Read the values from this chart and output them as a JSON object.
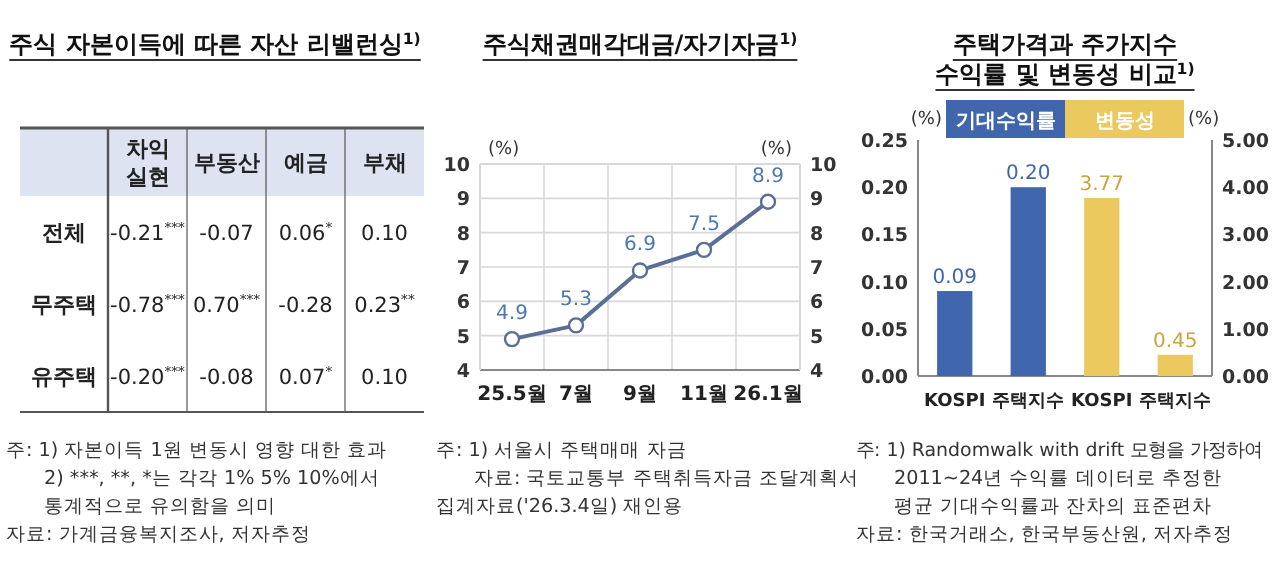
{
  "chart_data": [
    {
      "type": "other",
      "title": "주식 자본이득에 따른 자산 리밸런싱$^{1)}$",
      "categories": [
        "차익 실현",
        "부동산",
        "예금",
        "부채"
      ],
      "y_categories": [
        "전체",
        "무주택",
        "유주택"
      ],
      "cell_labels": [
        [
          "-0.21$^{***}$",
          "-0.07",
          "0.06$^{*}$",
          "0.10"
        ],
        [
          "-0.78$^{***}$",
          "0.70$^{***}$",
          "-0.28",
          "0.23$^{**}$"
        ],
        [
          "-0.20$^{***}$",
          "-0.08",
          "0.07$^{*}$",
          "0.10"
        ]
      ],
      "annotations": [
        "주: 1) 자본이득 1원 변동시 영향 대한 효과",
        "2) ***, **, *는 각각 1% 5% 10%에서",
        "통계적으로 유의함을 의미",
        "자료: 가계금융복지조사, 저자추정"
      ]
    },
    {
      "type": "line",
      "title": "주식채권매각대금/자기자금$^{1)}$",
      "categories": [
        "25.5월",
        "7월",
        "9월",
        "11월",
        "26.1월"
      ],
      "series": [
        {
          "color": "#5b6f96",
          "values": [
            4.9,
            5.3,
            6.9,
            7.5,
            8.9
          ]
        }
      ],
      "ylabel": "(%)",
      "y2label": "(%)",
      "ylim": [
        4,
        10
      ],
      "yticks": [
        4,
        5,
        6,
        7,
        8,
        9,
        10
      ],
      "y2lim": [
        4,
        10
      ],
      "y2ticks": [
        4,
        5,
        6,
        7,
        8,
        9,
        10
      ],
      "grid": true,
      "marker": "circle",
      "data_labels": true,
      "annotations": [
        "주: 1) 서울시 주택매매 자금",
        "자료: 국토교통부 주택취득자금 조달계획서",
        "집계자료('26.3.4일) 재인용"
      ]
    },
    {
      "type": "bar",
      "title": "주택가격과 주가지수\n수익률 및 변동성 비교$^{1)}$",
      "categories": [
        "KOSPI",
        "주택지수",
        "KOSPI",
        "주택지수"
      ],
      "series": [
        {
          "name": "기대수익률",
          "color": "#4066ad",
          "values": [
            0.09,
            0.2,
            null,
            null
          ],
          "value_labels": [
            "0.09",
            "0.20",
            null,
            null
          ]
        },
        {
          "name": "변동성",
          "color": "#ecc95e",
          "axis": "y2",
          "values": [
            null,
            null,
            3.77,
            0.45
          ],
          "value_labels": [
            null,
            null,
            "3.77",
            "0.45"
          ]
        }
      ],
      "ylabel": "(%)",
      "y2label": "(%)",
      "ylim": [
        0,
        0.25
      ],
      "yticks": [
        {
          "value": 0,
          "label": "0.00"
        },
        {
          "value": 0.05,
          "label": "0.05"
        },
        {
          "value": 0.1,
          "label": "0.10"
        },
        {
          "value": 0.15,
          "label": "0.15"
        },
        {
          "value": 0.2,
          "label": "0.20"
        },
        {
          "value": 0.25,
          "label": "0.25"
        }
      ],
      "y2lim": [
        0,
        5
      ],
      "y2ticks": [
        {
          "value": 0,
          "label": "0.00"
        },
        {
          "value": 1,
          "label": "1.00"
        },
        {
          "value": 2,
          "label": "2.00"
        },
        {
          "value": 3,
          "label": "3.00"
        },
        {
          "value": 4,
          "label": "4.00"
        },
        {
          "value": 5,
          "label": "5.00"
        }
      ],
      "legend": "top",
      "annotations": [
        "주: 1) Randomwalk with drift 모형을 가정하여",
        "2011~24년 수익률 데이터로 추정한",
        "평균 기대수익률과 잔차의 표준편차",
        "자료: 한국거래소, 한국부동산원, 저자추정"
      ]
    }
  ]
}
